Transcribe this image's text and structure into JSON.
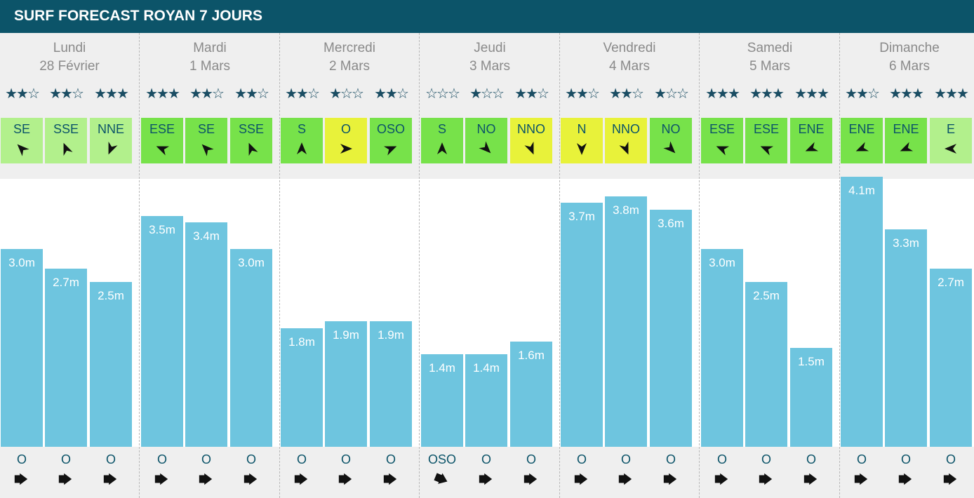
{
  "title": "SURF FORECAST ROYAN 7 JOURS",
  "colors": {
    "header": "#0c5469",
    "bar": "#6ec5df",
    "wind_light": "#b2f08c",
    "wind_green": "#77e24a",
    "wind_yellow": "#e8f23a"
  },
  "days": [
    {
      "name": "Lundi",
      "date": "28 Février"
    },
    {
      "name": "Mardi",
      "date": "1 Mars"
    },
    {
      "name": "Mercredi",
      "date": "2 Mars"
    },
    {
      "name": "Jeudi",
      "date": "3 Mars"
    },
    {
      "name": "Vendredi",
      "date": "4 Mars"
    },
    {
      "name": "Samedi",
      "date": "5 Mars"
    },
    {
      "name": "Dimanche",
      "date": "6 Mars"
    }
  ],
  "chart_data": {
    "type": "bar",
    "unit": "m",
    "series": [
      {
        "values": [
          3.0,
          2.7,
          2.5,
          3.5,
          3.4,
          3.0,
          1.8,
          1.9,
          1.9,
          1.4,
          1.4,
          1.6,
          3.7,
          3.8,
          3.6,
          3.0,
          2.5,
          1.5,
          4.1,
          3.3,
          2.7
        ]
      }
    ],
    "labels": [
      "3.0m",
      "2.7m",
      "2.5m",
      "3.5m",
      "3.4m",
      "3.0m",
      "1.8m",
      "1.9m",
      "1.9m",
      "1.4m",
      "1.4m",
      "1.6m",
      "3.7m",
      "3.8m",
      "3.6m",
      "3.0m",
      "2.5m",
      "1.5m",
      "4.1m",
      "3.3m",
      "2.7m"
    ],
    "stars": [
      2,
      2,
      3,
      3,
      2,
      2,
      2,
      1,
      2,
      0,
      1,
      2,
      2,
      2,
      1,
      3,
      3,
      3,
      2,
      3,
      3
    ],
    "wind_dir": [
      "SE",
      "SSE",
      "NNE",
      "ESE",
      "SE",
      "SSE",
      "S",
      "O",
      "OSO",
      "S",
      "NO",
      "NNO",
      "N",
      "NNO",
      "NO",
      "ESE",
      "ESE",
      "ENE",
      "ENE",
      "ENE",
      "E"
    ],
    "wind_color": [
      "light",
      "light",
      "light",
      "green",
      "green",
      "green",
      "green",
      "yellow",
      "green",
      "green",
      "green",
      "yellow",
      "yellow",
      "yellow",
      "green",
      "green",
      "green",
      "green",
      "green",
      "green",
      "light"
    ],
    "swell_dir": [
      "O",
      "O",
      "O",
      "O",
      "O",
      "O",
      "O",
      "O",
      "O",
      "OSO",
      "O",
      "O",
      "O",
      "O",
      "O",
      "O",
      "O",
      "O",
      "O",
      "O",
      "O"
    ]
  }
}
